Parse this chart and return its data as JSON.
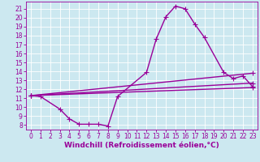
{
  "xlabel": "Windchill (Refroidissement éolien,°C)",
  "bg_color": "#cce8f0",
  "line_color": "#990099",
  "grid_color": "#ffffff",
  "xlim": [
    -0.5,
    23.5
  ],
  "ylim": [
    7.5,
    21.8
  ],
  "xticks": [
    0,
    1,
    2,
    3,
    4,
    5,
    6,
    7,
    8,
    9,
    10,
    11,
    12,
    13,
    14,
    15,
    16,
    17,
    18,
    19,
    20,
    21,
    22,
    23
  ],
  "yticks": [
    8,
    9,
    10,
    11,
    12,
    13,
    14,
    15,
    16,
    17,
    18,
    19,
    20,
    21
  ],
  "main_curve": {
    "x": [
      0,
      1,
      3,
      4,
      5,
      6,
      7,
      8,
      9,
      12,
      13,
      14,
      15,
      16,
      17,
      18,
      20,
      21,
      22,
      23
    ],
    "y": [
      11.3,
      11.2,
      9.8,
      8.7,
      8.1,
      8.1,
      8.1,
      7.9,
      11.2,
      13.9,
      17.6,
      20.1,
      21.3,
      21.0,
      19.3,
      17.8,
      13.9,
      13.2,
      13.5,
      12.3
    ]
  },
  "straight_lines": [
    {
      "x": [
        0,
        23
      ],
      "y": [
        11.3,
        12.2
      ]
    },
    {
      "x": [
        0,
        23
      ],
      "y": [
        11.3,
        12.7
      ]
    },
    {
      "x": [
        0,
        23
      ],
      "y": [
        11.3,
        13.8
      ]
    }
  ],
  "marker": "+",
  "markersize": 4,
  "linewidth": 1.0,
  "fontsize_axis": 6.5,
  "fontsize_tick": 5.5
}
